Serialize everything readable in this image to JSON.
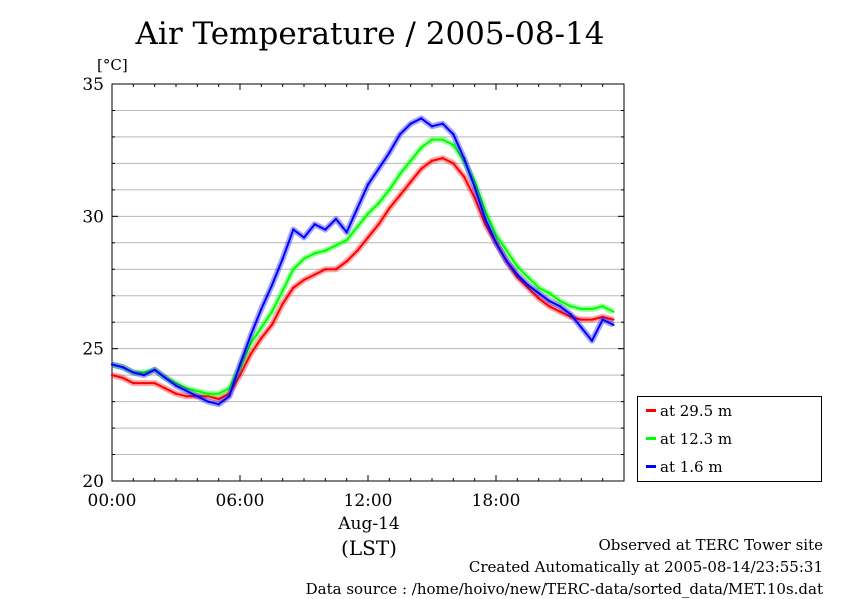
{
  "chart_data": {
    "type": "line",
    "title": "Air Temperature / 2005-08-14",
    "ylabel": "[°C]",
    "xlabel": "(LST)",
    "date_label": "Aug-14",
    "ylim": [
      20,
      35
    ],
    "y_ticks": [
      20,
      25,
      30,
      35
    ],
    "y_tick_labels": [
      "20",
      "25",
      "30",
      "35"
    ],
    "xlim": [
      "00:00",
      "24:00"
    ],
    "x_tick_labels": [
      "00:00",
      "06:00",
      "12:00",
      "18:00"
    ],
    "grid": "horizontal",
    "legend_position": "bottom-right outside",
    "x": [
      "00:00",
      "00:30",
      "01:00",
      "01:30",
      "02:00",
      "02:30",
      "03:00",
      "03:30",
      "04:00",
      "04:30",
      "05:00",
      "05:30",
      "06:00",
      "06:30",
      "07:00",
      "07:30",
      "08:00",
      "08:30",
      "09:00",
      "09:30",
      "10:00",
      "10:30",
      "11:00",
      "11:30",
      "12:00",
      "12:30",
      "13:00",
      "13:30",
      "14:00",
      "14:30",
      "15:00",
      "15:30",
      "16:00",
      "16:30",
      "17:00",
      "17:30",
      "18:00",
      "18:30",
      "19:00",
      "19:30",
      "20:00",
      "20:30",
      "21:00",
      "21:30",
      "22:00",
      "22:30",
      "23:00",
      "23:30"
    ],
    "series": [
      {
        "name": "at 29.5 m",
        "color": "#ff0000",
        "values": [
          24.0,
          23.9,
          23.7,
          23.7,
          23.7,
          23.5,
          23.3,
          23.2,
          23.2,
          23.2,
          23.1,
          23.3,
          24.0,
          24.8,
          25.4,
          25.9,
          26.7,
          27.3,
          27.6,
          27.8,
          28.0,
          28.0,
          28.3,
          28.7,
          29.2,
          29.7,
          30.3,
          30.8,
          31.3,
          31.8,
          32.1,
          32.2,
          32.0,
          31.5,
          30.7,
          29.7,
          29.0,
          28.3,
          27.7,
          27.3,
          26.9,
          26.6,
          26.4,
          26.2,
          26.1,
          26.1,
          26.2,
          26.1
        ]
      },
      {
        "name": "at 12.3 m",
        "color": "#00ff00",
        "values": [
          24.4,
          24.3,
          24.1,
          24.1,
          24.2,
          23.9,
          23.7,
          23.5,
          23.4,
          23.3,
          23.3,
          23.5,
          24.3,
          25.2,
          25.8,
          26.4,
          27.2,
          28.0,
          28.4,
          28.6,
          28.7,
          28.9,
          29.1,
          29.6,
          30.1,
          30.5,
          31.0,
          31.6,
          32.1,
          32.6,
          32.9,
          32.9,
          32.7,
          32.1,
          31.3,
          30.2,
          29.3,
          28.7,
          28.1,
          27.7,
          27.3,
          27.1,
          26.8,
          26.6,
          26.5,
          26.5,
          26.6,
          26.4
        ]
      },
      {
        "name": "at 1.6 m",
        "color": "#0000ff",
        "values": [
          24.4,
          24.3,
          24.1,
          24.0,
          24.2,
          23.9,
          23.6,
          23.4,
          23.2,
          23.0,
          22.9,
          23.2,
          24.4,
          25.5,
          26.5,
          27.4,
          28.4,
          29.5,
          29.2,
          29.7,
          29.5,
          29.9,
          29.4,
          30.3,
          31.2,
          31.8,
          32.4,
          33.1,
          33.5,
          33.7,
          33.4,
          33.5,
          33.1,
          32.2,
          31.1,
          29.9,
          29.0,
          28.3,
          27.8,
          27.4,
          27.1,
          26.8,
          26.6,
          26.3,
          25.8,
          25.3,
          26.1,
          25.9
        ]
      }
    ]
  },
  "footer": {
    "site": "Observed at TERC Tower site",
    "created": "Created Automatically at 2005-08-14/23:55:31",
    "source": "Data source : /home/hoivo/new/TERC-data/sorted_data/MET.10s.dat"
  }
}
